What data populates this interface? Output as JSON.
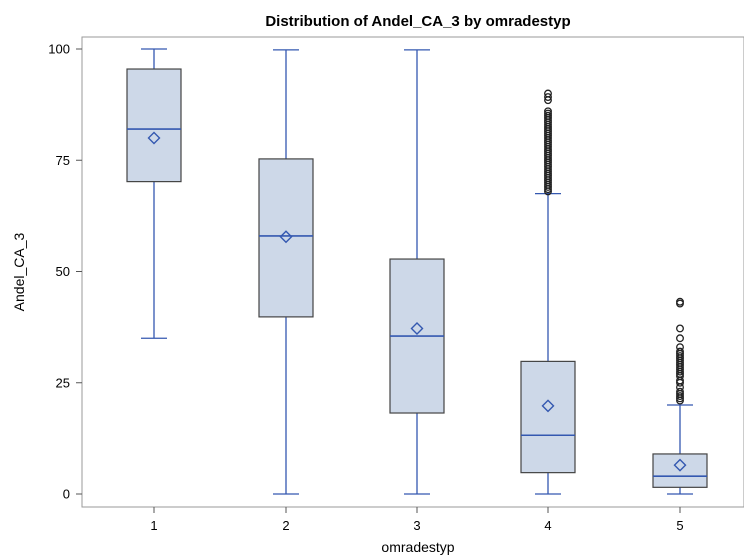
{
  "chart_data": {
    "type": "box",
    "title": "Distribution of Andel_CA_3 by omradestyp",
    "xlabel": "omradestyp",
    "ylabel": "Andel_CA_3",
    "categories": [
      "1",
      "2",
      "3",
      "4",
      "5"
    ],
    "yticks": [
      "0",
      "25",
      "50",
      "75",
      "100"
    ],
    "ylim": [
      0,
      100
    ],
    "grid": false,
    "colors": {
      "box_fill": "#cdd8e8",
      "box_stroke": "#444444",
      "median": "#3458b0",
      "whisker": "#3458b0",
      "mean_marker": "#3458b0",
      "outlier": "#222222"
    },
    "series": [
      {
        "category": "1",
        "whisker_low": 35,
        "q1": 70.2,
        "median": 82,
        "q3": 95.5,
        "whisker_high": 100,
        "mean": 80,
        "outliers": []
      },
      {
        "category": "2",
        "whisker_low": 0,
        "q1": 39.8,
        "median": 58,
        "q3": 75.3,
        "whisker_high": 99.8,
        "mean": 57.8,
        "outliers": []
      },
      {
        "category": "3",
        "whisker_low": 0,
        "q1": 18.2,
        "median": 35.5,
        "q3": 52.8,
        "whisker_high": 99.8,
        "mean": 37.2,
        "outliers": []
      },
      {
        "category": "4",
        "whisker_low": 0,
        "q1": 4.8,
        "median": 13.2,
        "q3": 29.8,
        "whisker_high": 67.5,
        "mean": 19.8,
        "outliers": [
          68,
          68.5,
          69,
          69.5,
          70,
          70.5,
          71,
          71.5,
          72,
          72.5,
          73,
          73.5,
          74,
          74.5,
          75,
          75.5,
          76,
          76.5,
          77,
          77.5,
          78,
          78.5,
          79,
          79.5,
          80,
          80.5,
          81,
          81.5,
          82,
          82.5,
          83,
          83.5,
          84,
          84.5,
          85,
          85.5,
          86,
          88.5,
          89.2,
          90
        ]
      },
      {
        "category": "5",
        "whisker_low": 0,
        "q1": 1.5,
        "median": 4,
        "q3": 9,
        "whisker_high": 20,
        "mean": 6.5,
        "outliers": [
          21,
          21.5,
          22,
          22.5,
          23,
          24,
          25,
          25.5,
          26.5,
          27,
          27.5,
          28,
          28.5,
          29,
          29.5,
          30,
          30.5,
          31,
          31.5,
          32,
          33,
          35,
          37.2,
          42.8,
          43.2
        ]
      }
    ]
  }
}
